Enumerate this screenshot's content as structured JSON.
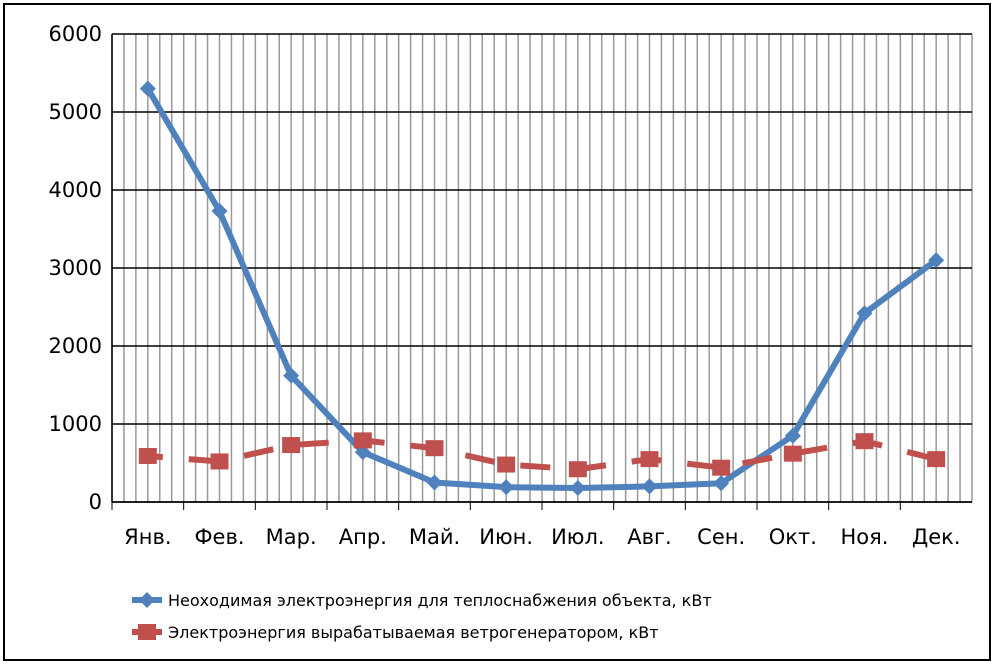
{
  "chart_data": {
    "type": "line",
    "categories": [
      "Янв.",
      "Фев.",
      "Мар.",
      "Апр.",
      "Май.",
      "Июн.",
      "Июл.",
      "Авг.",
      "Сен.",
      "Окт.",
      "Ноя.",
      "Дек."
    ],
    "series": [
      {
        "name": "Неоходимая электроэнергия для теплоснабжения объекта, кВт",
        "color": "#4f81bd",
        "marker": "diamond",
        "values": [
          5300,
          3730,
          1620,
          640,
          250,
          190,
          180,
          200,
          240,
          850,
          2420,
          3100
        ]
      },
      {
        "name": "Электроэнергия вырабатываемая ветрогенератором, кВт",
        "color": "#c0504d",
        "marker": "square",
        "dashed": true,
        "values": [
          590,
          520,
          730,
          790,
          690,
          480,
          420,
          550,
          440,
          620,
          780,
          550
        ]
      }
    ],
    "ylim": [
      0,
      6000
    ],
    "yticks": [
      0,
      1000,
      2000,
      3000,
      4000,
      5000,
      6000
    ],
    "grid": true,
    "legend": "bottom"
  }
}
